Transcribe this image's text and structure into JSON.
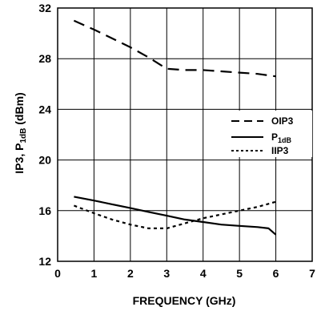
{
  "chart_data": {
    "type": "line",
    "xlabel": "FREQUENCY (GHz)",
    "ylabel_main": "IP3, P",
    "ylabel_sub": "1dB",
    "ylabel_tail": " (dBm)",
    "xlim": [
      0,
      7
    ],
    "ylim": [
      12,
      32
    ],
    "x_ticks": [
      "0",
      "1",
      "2",
      "3",
      "4",
      "5",
      "6",
      "7"
    ],
    "y_ticks": [
      "12",
      "16",
      "20",
      "24",
      "28",
      "32"
    ],
    "grid": true,
    "legend_position": "right-middle",
    "series": [
      {
        "name": "OIP3",
        "style": "dashed",
        "x": [
          0.45,
          1.0,
          1.5,
          2.0,
          2.5,
          3.0,
          3.5,
          4.0,
          4.5,
          5.0,
          5.5,
          6.0
        ],
        "y": [
          31.0,
          30.3,
          29.6,
          28.9,
          28.1,
          27.2,
          27.1,
          27.1,
          27.0,
          26.9,
          26.8,
          26.6
        ]
      },
      {
        "name_main": "P",
        "name_sub": "1dB",
        "style": "solid",
        "x": [
          0.45,
          1.0,
          1.5,
          2.0,
          2.5,
          3.0,
          3.5,
          4.0,
          4.5,
          5.0,
          5.5,
          5.8,
          6.0
        ],
        "y": [
          17.1,
          16.8,
          16.5,
          16.2,
          15.9,
          15.6,
          15.3,
          15.1,
          14.9,
          14.8,
          14.7,
          14.6,
          14.1
        ]
      },
      {
        "name": "IIP3",
        "style": "dotted",
        "x": [
          0.45,
          1.0,
          1.5,
          2.0,
          2.5,
          3.0,
          3.5,
          4.0,
          4.5,
          5.0,
          5.5,
          6.0
        ],
        "y": [
          16.4,
          15.8,
          15.3,
          14.9,
          14.6,
          14.6,
          15.0,
          15.4,
          15.7,
          16.0,
          16.3,
          16.7
        ]
      }
    ]
  }
}
